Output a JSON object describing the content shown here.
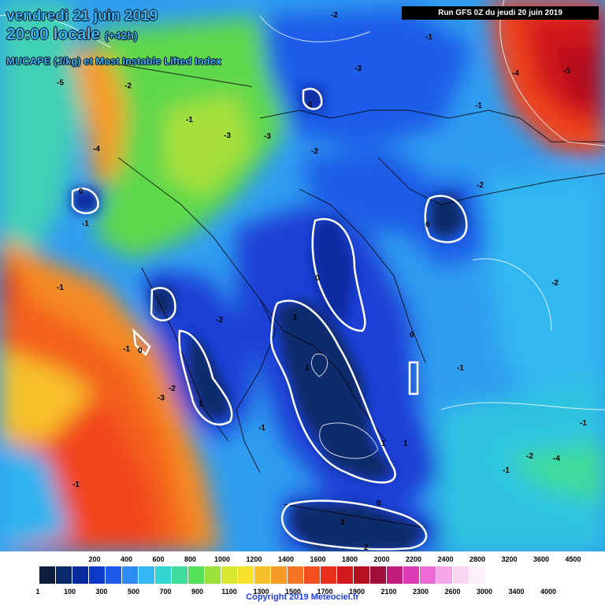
{
  "title_lines": {
    "date": "vendredi 21 juin 2019",
    "time": "20:00 locale",
    "lead": "(+42h)",
    "field": "MUCAPE (J/kg) et Most Instable Lifted Index"
  },
  "run_label": "Run GFS 0Z du jeudi 20 juin 2019",
  "copyright": "Copyright 2019 Meteociel.fr",
  "legend": {
    "top_ticks": [
      "200",
      "400",
      "600",
      "800",
      "1000",
      "1200",
      "1400",
      "1600",
      "1800",
      "2000",
      "2200",
      "2400",
      "2800",
      "3200",
      "3600",
      "4500"
    ],
    "bottom_ticks": [
      "1",
      "100",
      "300",
      "500",
      "700",
      "900",
      "1100",
      "1300",
      "1500",
      "1700",
      "1900",
      "2100",
      "2300",
      "2600",
      "3000",
      "3400",
      "4000"
    ],
    "colors": [
      "#0d1f3c",
      "#0b2a6b",
      "#0a2aa0",
      "#0b39c8",
      "#1b5be8",
      "#2c8af5",
      "#31b7f2",
      "#31d4d2",
      "#3ddc9b",
      "#55e05a",
      "#9ae33b",
      "#d7e82e",
      "#f5e12b",
      "#f7c02a",
      "#f79b26",
      "#f57622",
      "#f2501e",
      "#e9301c",
      "#d2181a",
      "#b4101e",
      "#a00d3a",
      "#c21c7c",
      "#de39b7",
      "#ee6ad7",
      "#f6a6ea",
      "#fbd3f3",
      "#fff0fb"
    ]
  },
  "lifted_index_labels": [
    "-2",
    "-1",
    "-3",
    "-1",
    "-5",
    "-4",
    "-2",
    "-1",
    "0",
    "-1",
    "0",
    "-2",
    "-3",
    "-1",
    "-1",
    "1",
    "1",
    "1",
    "1",
    "0",
    "0",
    "-2",
    "-1",
    "0",
    "-1",
    "-2",
    "-3",
    "-1",
    "-2",
    "-4",
    "0",
    "-1",
    "-2",
    "-5",
    "3",
    "2",
    "-1",
    "-4",
    "-3",
    "1",
    "0",
    "-2"
  ]
}
